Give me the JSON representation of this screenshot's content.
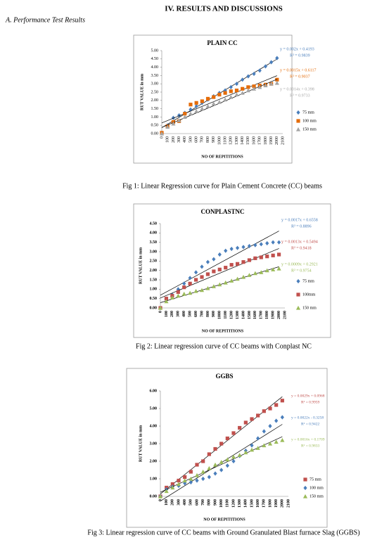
{
  "document": {
    "section_title": "IV. RESULTS AND DISCUSSIONS",
    "subsection_title": "A.   Performance Test Results",
    "captions": [
      "Fig 1: Linear Regression curve for Plain Cement Concrete (CC) beams",
      "Fig 2: Linear regression curve of CC beams with Conplast NC",
      "Fig 3: Linear regression curve of CC beams with Ground Granulated Blast furnace Slag (GGBS)"
    ]
  },
  "chart_data": [
    {
      "type": "line",
      "title": "PLAIN CC",
      "x_label": "NO OF REPITITIONS",
      "y_label": "RUT VALUE in mm",
      "grid": false,
      "trendline": true,
      "categories": [
        "0",
        "100",
        "200",
        "300",
        "400",
        "500",
        "600",
        "700",
        "800",
        "900",
        "1000",
        "1100",
        "1200",
        "1300",
        "1400",
        "1500",
        "1600",
        "1700",
        "1800",
        "1900",
        "2000",
        "2100"
      ],
      "ylim": [
        0,
        5
      ],
      "yticks": [
        {
          "value": 0,
          "label": "0.00"
        },
        {
          "value": 0.5,
          "label": "0.50"
        },
        {
          "value": 1,
          "label": "1.00"
        },
        {
          "value": 1.5,
          "label": "1.50"
        },
        {
          "value": 2,
          "label": "2.00"
        },
        {
          "value": 2.5,
          "label": "2.50"
        },
        {
          "value": 3,
          "label": "3.00"
        },
        {
          "value": 3.5,
          "label": "3.50"
        },
        {
          "value": 4,
          "label": "4.00"
        },
        {
          "value": 4.5,
          "label": "4.50"
        },
        {
          "value": 5,
          "label": "5.00"
        }
      ],
      "series": [
        {
          "name": "75 mm",
          "color": "#4a7ebb",
          "marker": "diamond",
          "equation": "y = 0.002x + 0.4193",
          "r2": "R² = 0.9839",
          "values": [
            0,
            0.5,
            0.95,
            1.1,
            1.25,
            1.45,
            1.65,
            1.85,
            2.05,
            2.25,
            2.45,
            2.6,
            2.8,
            3.0,
            3.25,
            3.45,
            3.6,
            3.8,
            4.05,
            4.3,
            4.55,
            null
          ]
        },
        {
          "name": "100 mm",
          "color": "#e46c0a",
          "marker": "square",
          "equation": "y = 0.0015x + 0.6117",
          "r2": "R² = 0.9037",
          "values": [
            0.05,
            0.45,
            0.7,
            0.75,
            1.2,
            1.75,
            1.85,
            1.95,
            2.1,
            2.2,
            2.35,
            2.45,
            2.55,
            2.6,
            2.7,
            2.8,
            2.85,
            2.9,
            2.95,
            3.0,
            3.25,
            null
          ]
        },
        {
          "name": "150 mm",
          "color": "#a5a5a5",
          "marker": "triangle",
          "equation": "y = 0.0014x + 0.398",
          "r2": "R² = 0.9733",
          "values": [
            0,
            0.4,
            0.6,
            0.8,
            1.0,
            1.2,
            1.35,
            1.5,
            1.65,
            1.8,
            1.9,
            2.05,
            2.2,
            2.35,
            2.45,
            2.6,
            2.7,
            2.8,
            2.9,
            3.0,
            3.05,
            null
          ]
        }
      ]
    },
    {
      "type": "line",
      "title": "CONPLASTNC",
      "x_label": "NO OF REPITITIONS",
      "y_label": "RUT VALUE in mm",
      "grid": false,
      "trendline": true,
      "categories": [
        "0",
        "100",
        "200",
        "300",
        "400",
        "500",
        "600",
        "700",
        "800",
        "900",
        "1000",
        "1100",
        "1200",
        "1300",
        "1400",
        "1500",
        "1600",
        "1700",
        "1800",
        "1900",
        "2000",
        "2100"
      ],
      "ylim": [
        0,
        4.5
      ],
      "yticks": [
        {
          "value": 0,
          "label": "0.00"
        },
        {
          "value": 0.5,
          "label": "0.50"
        },
        {
          "value": 1,
          "label": "1.00"
        },
        {
          "value": 1.5,
          "label": "1.50"
        },
        {
          "value": 2,
          "label": "2.00"
        },
        {
          "value": 2.5,
          "label": "2.50"
        },
        {
          "value": 3,
          "label": "3.00"
        },
        {
          "value": 3.5,
          "label": "3.50"
        },
        {
          "value": 4,
          "label": "4.00"
        },
        {
          "value": 4.5,
          "label": "4.50"
        }
      ],
      "series": [
        {
          "name": "75 mm",
          "color": "#4a7ebb",
          "marker": "diamond",
          "equation": "y = 0.0017x + 0.6558",
          "r2": "R² = 0.8896",
          "values": [
            0,
            0.5,
            0.7,
            1.0,
            1.3,
            1.6,
            1.9,
            2.2,
            2.45,
            2.6,
            2.85,
            3.05,
            3.15,
            3.2,
            3.25,
            3.3,
            3.35,
            3.4,
            3.45,
            3.5,
            3.5,
            null
          ]
        },
        {
          "name": "100mm",
          "color": "#c0504d",
          "marker": "square",
          "equation": "y = 0.0013x + 0.5494",
          "r2": "R² = 0.9418",
          "values": [
            0,
            0.5,
            0.65,
            0.85,
            1.1,
            1.3,
            1.5,
            1.65,
            1.8,
            1.95,
            2.05,
            2.15,
            2.3,
            2.35,
            2.45,
            2.55,
            2.65,
            2.7,
            2.75,
            2.8,
            2.85,
            null
          ]
        },
        {
          "name": "150 mm",
          "color": "#9bbb59",
          "marker": "triangle",
          "equation": "y = 0.0009x + 0.2921",
          "r2": "R² = 0.9754",
          "values": [
            0,
            0.35,
            0.55,
            0.65,
            0.75,
            0.8,
            0.9,
            0.95,
            1.05,
            1.15,
            1.25,
            1.35,
            1.45,
            1.55,
            1.65,
            1.75,
            1.85,
            1.9,
            2.0,
            2.05,
            2.1,
            null
          ]
        }
      ]
    },
    {
      "type": "line",
      "title": "GGBS",
      "x_label": "NO OF REPITITIONS",
      "y_label": "RUT VALUE in mm",
      "grid": false,
      "trendline": true,
      "categories": [
        "0",
        "100",
        "200",
        "300",
        "400",
        "500",
        "600",
        "700",
        "800",
        "900",
        "1000",
        "1100",
        "1200",
        "1300",
        "1400",
        "1500",
        "1600",
        "1700",
        "1800",
        "1900",
        "2000",
        "2100"
      ],
      "ylim": [
        0,
        6
      ],
      "yticks": [
        {
          "value": 0,
          "label": "0.00"
        },
        {
          "value": 1,
          "label": "1.00"
        },
        {
          "value": 2,
          "label": "2.00"
        },
        {
          "value": 3,
          "label": "3.00"
        },
        {
          "value": 4,
          "label": "4.00"
        },
        {
          "value": 5,
          "label": "5.00"
        },
        {
          "value": 6,
          "label": "6.00"
        }
      ],
      "series": [
        {
          "name": "75 mm",
          "color": "#c0504d",
          "marker": "square",
          "equation": "y = 0.0029x + 0.0968",
          "r2": "R² = 0.9959",
          "values": [
            0,
            0.5,
            0.7,
            0.9,
            1.1,
            1.4,
            1.8,
            2.0,
            2.4,
            2.7,
            3.0,
            3.3,
            3.6,
            3.9,
            4.2,
            4.4,
            4.6,
            4.85,
            5.0,
            5.2,
            5.45,
            null
          ]
        },
        {
          "name": "100 mm",
          "color": "#4a7ebb",
          "marker": "diamond",
          "equation": "y = 0.0022x - 0.3258",
          "r2": "R² = 0.9422",
          "values": [
            0,
            0.4,
            0.55,
            0.6,
            0.75,
            0.8,
            0.9,
            1.0,
            1.1,
            1.3,
            1.5,
            1.75,
            2.0,
            2.3,
            2.6,
            2.9,
            3.3,
            3.7,
            4.0,
            4.3,
            4.5,
            null
          ]
        },
        {
          "name": "150 mm",
          "color": "#9bbb59",
          "marker": "triangle",
          "equation": "y = 0.0016x + 0.1709",
          "r2": "R² = 0.9833",
          "values": [
            0,
            0.3,
            0.5,
            0.7,
            0.9,
            1.0,
            1.2,
            1.4,
            1.6,
            1.8,
            1.95,
            2.1,
            2.25,
            2.35,
            2.5,
            2.65,
            2.75,
            2.9,
            3.0,
            3.1,
            3.2,
            null
          ]
        }
      ]
    }
  ]
}
